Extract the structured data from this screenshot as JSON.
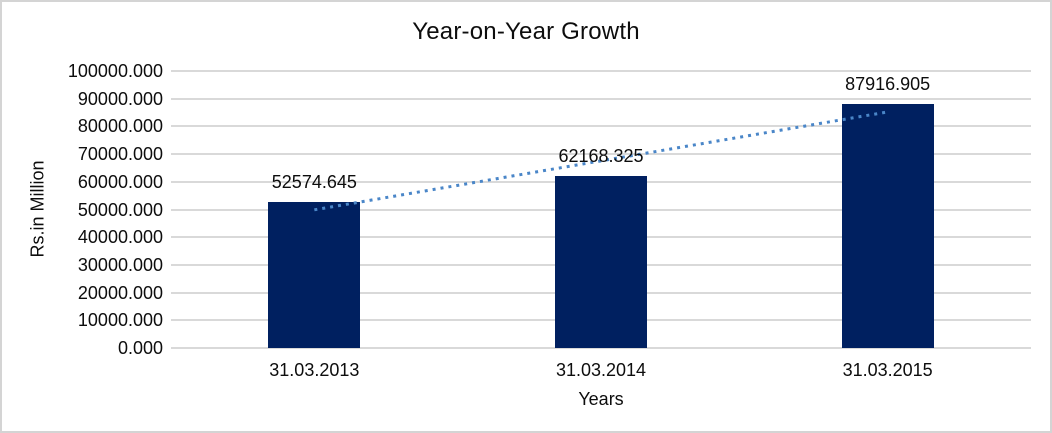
{
  "window": {
    "background_color": "#ffffff",
    "border_color": "#d4d4d4"
  },
  "chart_data": {
    "type": "bar",
    "title": "Year-on-Year Growth",
    "xlabel": "Years",
    "ylabel": "Rs.in Million",
    "categories": [
      "31.03.2013",
      "31.03.2014",
      "31.03.2015"
    ],
    "values": [
      52574.645,
      62168.325,
      87916.905
    ],
    "data_labels": [
      "52574.645",
      "62168.325",
      "87916.905"
    ],
    "ylim": [
      0,
      100000
    ],
    "ytick_step": 10000,
    "ytick_labels": [
      "0.000",
      "10000.000",
      "20000.000",
      "30000.000",
      "40000.000",
      "50000.000",
      "60000.000",
      "70000.000",
      "80000.000",
      "90000.000",
      "100000.000"
    ],
    "grid": true,
    "legend_position": "none",
    "bar_color": "#002060",
    "gridline_color": "#d9d9d9",
    "axis_line_color": "#d9d9d9",
    "text_color": "#0d0d0d",
    "trendline": {
      "type": "linear",
      "style": "dotted",
      "color": "#4a86c8"
    }
  }
}
